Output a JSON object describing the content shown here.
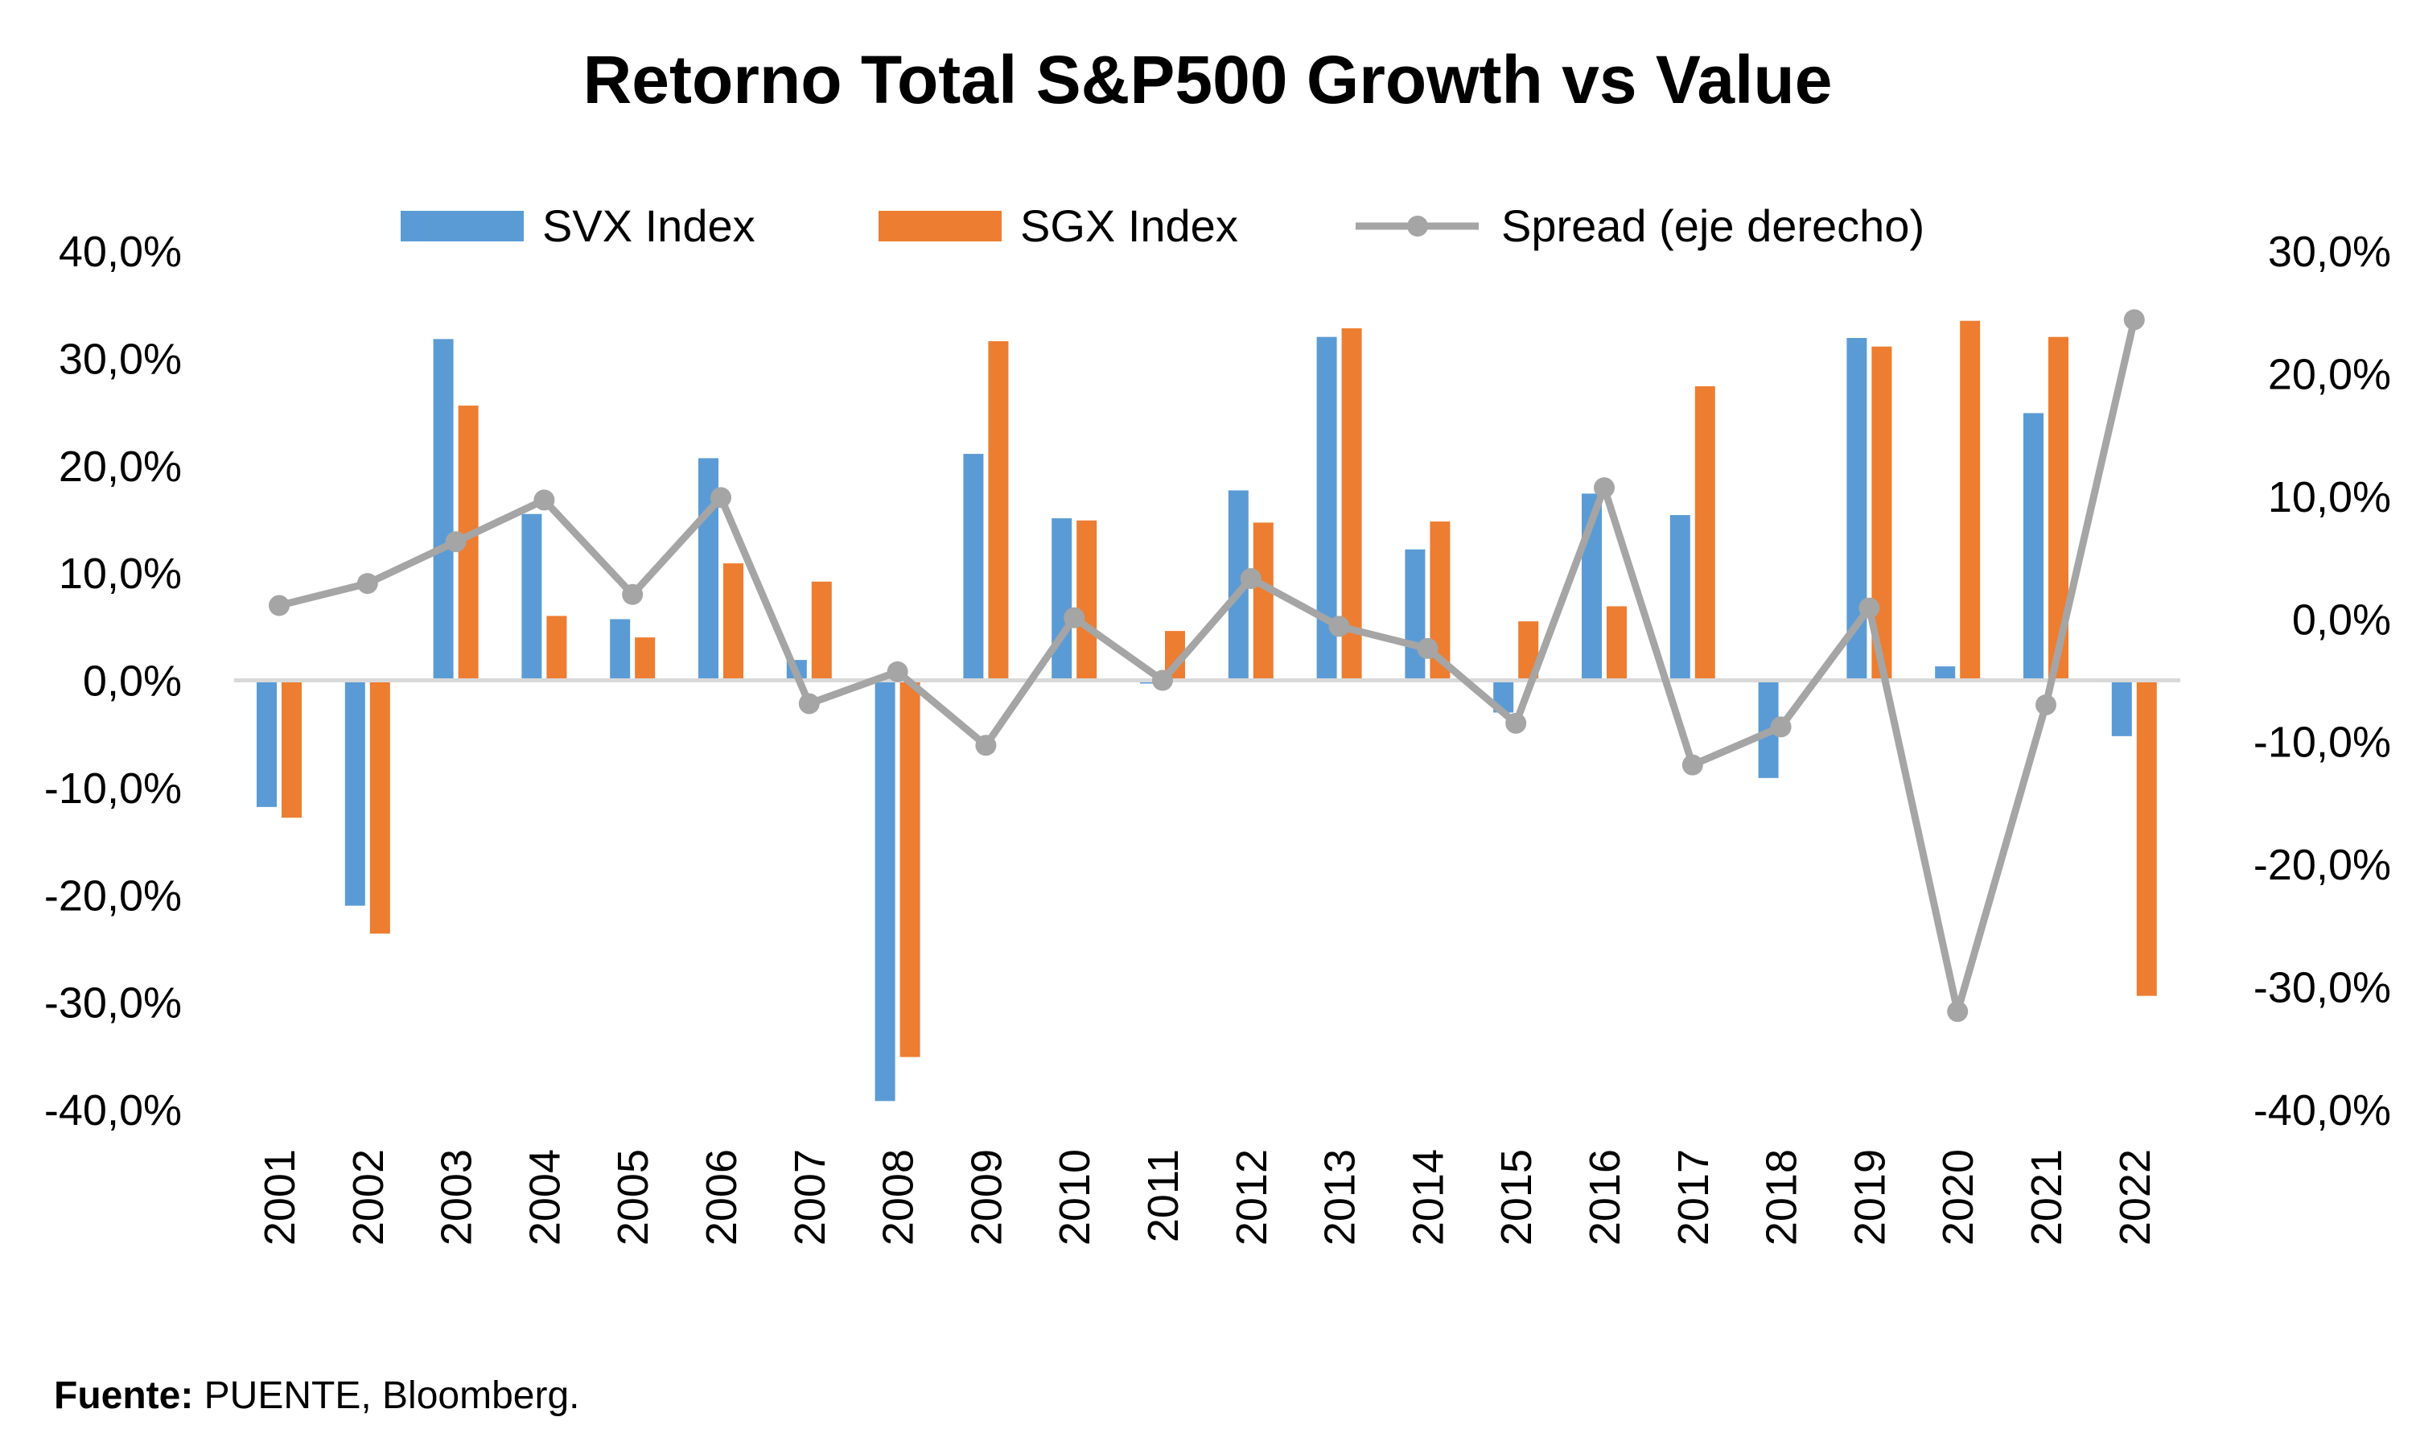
{
  "chart_data": {
    "type": "bar",
    "title": "Retorno Total S&P500 Growth vs Value",
    "categories": [
      "2001",
      "2002",
      "2003",
      "2004",
      "2005",
      "2006",
      "2007",
      "2008",
      "2009",
      "2010",
      "2011",
      "2012",
      "2013",
      "2014",
      "2015",
      "2016",
      "2017",
      "2018",
      "2019",
      "2020",
      "2021",
      "2022"
    ],
    "series": [
      {
        "name": "SVX Index",
        "type": "bar",
        "axis": "left",
        "color": "#5B9BD5",
        "values": [
          -11.8,
          -21.0,
          31.8,
          15.5,
          5.7,
          20.7,
          1.9,
          -39.2,
          21.1,
          15.1,
          -0.3,
          17.7,
          32.0,
          12.2,
          -3.0,
          17.4,
          15.4,
          -9.1,
          31.9,
          1.3,
          24.9,
          -5.2
        ]
      },
      {
        "name": "SGX Index",
        "type": "bar",
        "axis": "left",
        "color": "#ED7D31",
        "values": [
          -12.8,
          -23.6,
          25.6,
          6.0,
          4.0,
          10.9,
          9.2,
          -35.1,
          31.6,
          14.9,
          4.6,
          14.7,
          32.8,
          14.8,
          5.5,
          6.9,
          27.4,
          -0.1,
          31.1,
          33.5,
          32.0,
          -29.4
        ]
      },
      {
        "name": "Spread (eje derecho)",
        "type": "line",
        "axis": "right",
        "color": "#A5A5A5",
        "values": [
          1.1,
          2.9,
          6.3,
          9.7,
          2.0,
          9.9,
          -6.9,
          -4.3,
          -10.3,
          0.1,
          -5.0,
          3.3,
          -0.6,
          -2.4,
          -8.5,
          10.7,
          -11.9,
          -8.8,
          0.9,
          -32.0,
          -7.0,
          24.4
        ]
      }
    ],
    "left_axis": {
      "min": -40,
      "max": 40,
      "step": 10,
      "ticks": [
        "40,0%",
        "30,0%",
        "20,0%",
        "10,0%",
        "0,0%",
        "-10,0%",
        "-20,0%",
        "-30,0%",
        "-40,0%"
      ]
    },
    "right_axis": {
      "min": -40,
      "max": 30,
      "step": 10,
      "ticks": [
        "30,0%",
        "20,0%",
        "10,0%",
        "0,0%",
        "-10,0%",
        "-20,0%",
        "-30,0%",
        "-40,0%"
      ]
    },
    "grid": false,
    "legend": "top"
  },
  "source": {
    "label": "Fuente:",
    "text": " PUENTE, Bloomberg."
  }
}
